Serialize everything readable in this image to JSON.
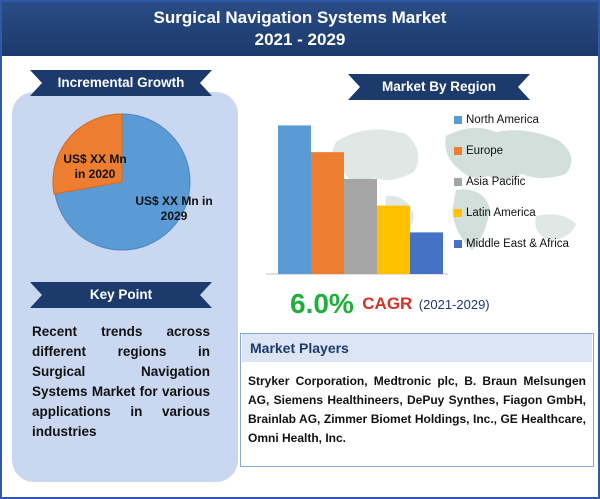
{
  "header": {
    "title_line1": "Surgical Navigation Systems Market",
    "title_line2": "2021 - 2029"
  },
  "incremental_growth": {
    "heading": "Incremental Growth",
    "label_2020": "US$ XX Mn in 2020",
    "label_2029": "US$ XX Mn in 2029",
    "colors": {
      "2020": "#ed7d31",
      "2029": "#5b9bd5"
    }
  },
  "key_point": {
    "heading": "Key Point",
    "text": "Recent trends across different regions in Surgical Navigation Systems Market for various applications in various industries"
  },
  "market_by_region": {
    "heading": "Market By Region",
    "legend": [
      {
        "label": "North America",
        "color": "#5b9bd5"
      },
      {
        "label": "Europe",
        "color": "#ed7d31"
      },
      {
        "label": "Asia Pacific",
        "color": "#a5a5a5"
      },
      {
        "label": "Latin America",
        "color": "#ffc000"
      },
      {
        "label": "Middle East & Africa",
        "color": "#4472c4"
      }
    ]
  },
  "chart_data": {
    "type": "bar",
    "categories": [
      "North America",
      "Europe",
      "Asia Pacific",
      "Latin America",
      "Middle East & Africa"
    ],
    "values": [
      100,
      82,
      64,
      46,
      28
    ],
    "colors": [
      "#5b9bd5",
      "#ed7d31",
      "#a5a5a5",
      "#ffc000",
      "#4472c4"
    ],
    "ylim": [
      0,
      105
    ],
    "title": "",
    "xlabel": "",
    "ylabel": "",
    "grid": false,
    "legend_position": "right"
  },
  "cagr": {
    "value": "6.0%",
    "label": "CAGR",
    "period": "(2021-2029)"
  },
  "market_players": {
    "heading": "Market Players",
    "text": "Stryker Corporation, Medtronic plc, B. Braun Melsungen AG, Siemens Healthineers, DePuy Synthes, Fiagon GmbH, Brainlab AG, Zimmer Biomet Holdings, Inc., GE Healthcare, Omni Health, Inc."
  }
}
